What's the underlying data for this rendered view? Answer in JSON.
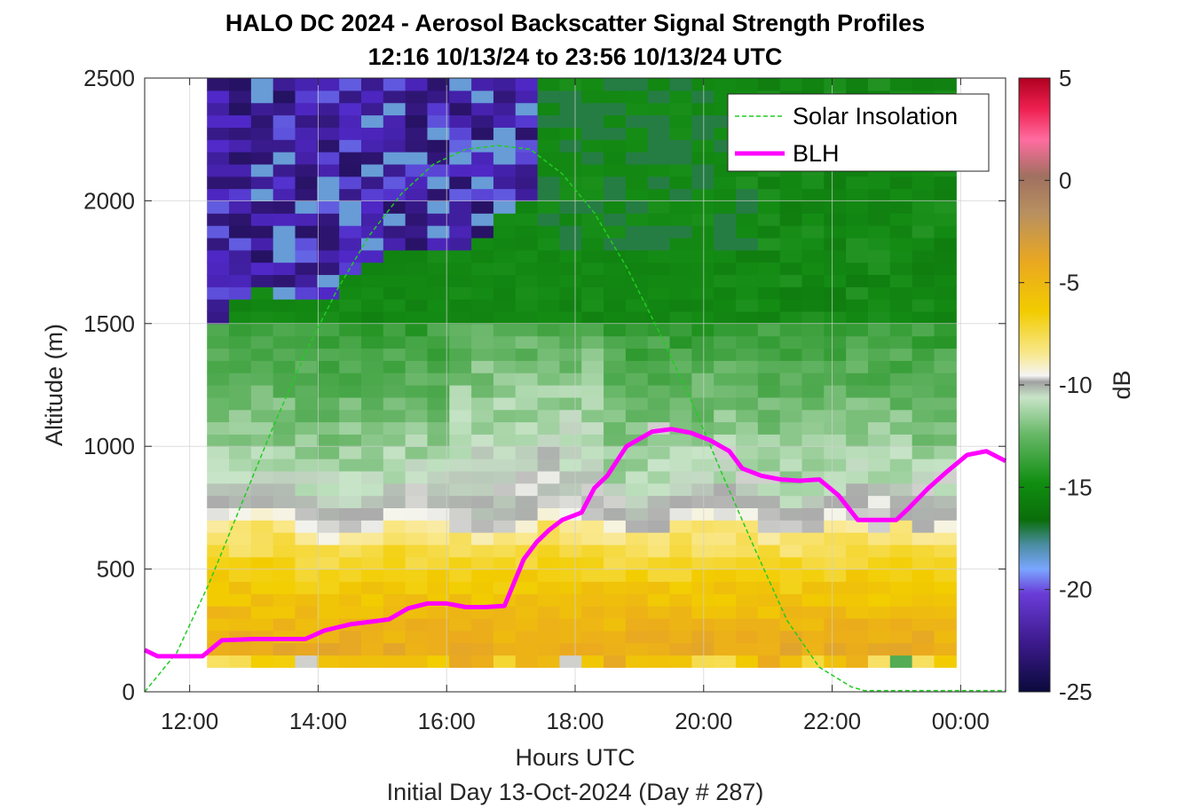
{
  "chart_data": {
    "type": "heatmap",
    "title": "HALO DC 2024 - Aerosol Backscatter Signal Strength Profiles",
    "subtitle": "12:16 10/13/24 to 23:56 10/13/24  UTC",
    "xlabel": "Hours UTC",
    "xlabel2": "Initial Day 13-Oct-2024 (Day # 287)",
    "ylabel": "Altitude (m)",
    "colorbar_label": "dB",
    "xlim": [
      11.3,
      24.7
    ],
    "ylim": [
      0,
      2500
    ],
    "clim": [
      -25,
      5
    ],
    "x_ticks": [
      12,
      14,
      16,
      18,
      20,
      22,
      24
    ],
    "x_tick_labels": [
      "12:00",
      "14:00",
      "16:00",
      "18:00",
      "20:00",
      "22:00",
      "00:00"
    ],
    "y_ticks": [
      0,
      500,
      1000,
      1500,
      2000,
      2500
    ],
    "y_tick_labels": [
      "0",
      "500",
      "1000",
      "1500",
      "2000",
      "2500"
    ],
    "colorbar_ticks": [
      5,
      0,
      -5,
      -10,
      -15,
      -20,
      -25
    ],
    "colorbar_tick_labels": [
      "5",
      "0",
      "-5",
      "-10",
      "-15",
      "-20",
      "-25"
    ],
    "grid": true,
    "legend_position": "top-right",
    "legend": [
      {
        "name": "Solar Insolation",
        "color": "#22cc22",
        "style": "dashed"
      },
      {
        "name": "BLH",
        "color": "#ff00ff",
        "style": "solid"
      }
    ],
    "heatmap": {
      "time_range": [
        12.27,
        23.93
      ],
      "altitude_range": [
        100,
        2500
      ],
      "columns": 34,
      "row_height_m": 50,
      "layers": [
        {
          "altitude_range": [
            100,
            700
          ],
          "approx_db": -5,
          "color_name": "orange-yellow"
        },
        {
          "altitude_range": [
            700,
            850
          ],
          "approx_db": -10,
          "color_name": "white-gray"
        },
        {
          "altitude_range": [
            850,
            1500
          ],
          "approx_db": -13,
          "color_name": "light-green"
        },
        {
          "altitude_range": [
            1500,
            2500
          ],
          "approx_db": -20,
          "color_name": "purple-blue (early) / green (late)"
        }
      ]
    },
    "series": [
      {
        "name": "BLH",
        "x": [
          11.3,
          11.5,
          12.0,
          12.2,
          12.5,
          13.0,
          13.5,
          13.8,
          14.1,
          14.5,
          14.8,
          15.1,
          15.4,
          15.7,
          16.0,
          16.3,
          16.6,
          16.9,
          17.2,
          17.4,
          17.6,
          17.8,
          18.1,
          18.3,
          18.5,
          18.8,
          19.2,
          19.5,
          19.8,
          20.1,
          20.4,
          20.6,
          20.9,
          21.2,
          21.5,
          21.8,
          22.1,
          22.4,
          22.7,
          23.0,
          23.2,
          23.5,
          23.8,
          24.1,
          24.4,
          24.7
        ],
        "y": [
          170,
          145,
          145,
          145,
          210,
          215,
          215,
          215,
          250,
          275,
          285,
          295,
          340,
          360,
          360,
          345,
          345,
          350,
          540,
          610,
          660,
          700,
          730,
          830,
          880,
          1000,
          1060,
          1070,
          1055,
          1025,
          980,
          910,
          880,
          865,
          860,
          865,
          800,
          700,
          700,
          700,
          750,
          830,
          900,
          965,
          980,
          940
        ]
      },
      {
        "name": "Solar Insolation",
        "x": [
          11.3,
          11.8,
          12.3,
          12.8,
          13.3,
          13.8,
          14.3,
          14.8,
          15.3,
          15.8,
          16.3,
          16.8,
          17.3,
          17.8,
          18.3,
          18.8,
          19.3,
          19.8,
          20.3,
          20.8,
          21.3,
          21.8,
          22.3,
          22.5,
          23.0,
          23.5,
          24.0,
          24.5,
          24.7
        ],
        "y": [
          0,
          160,
          440,
          760,
          1080,
          1380,
          1640,
          1860,
          2030,
          2150,
          2210,
          2225,
          2210,
          2110,
          1950,
          1730,
          1470,
          1190,
          880,
          580,
          290,
          100,
          20,
          5,
          5,
          5,
          5,
          5,
          5
        ]
      }
    ]
  }
}
